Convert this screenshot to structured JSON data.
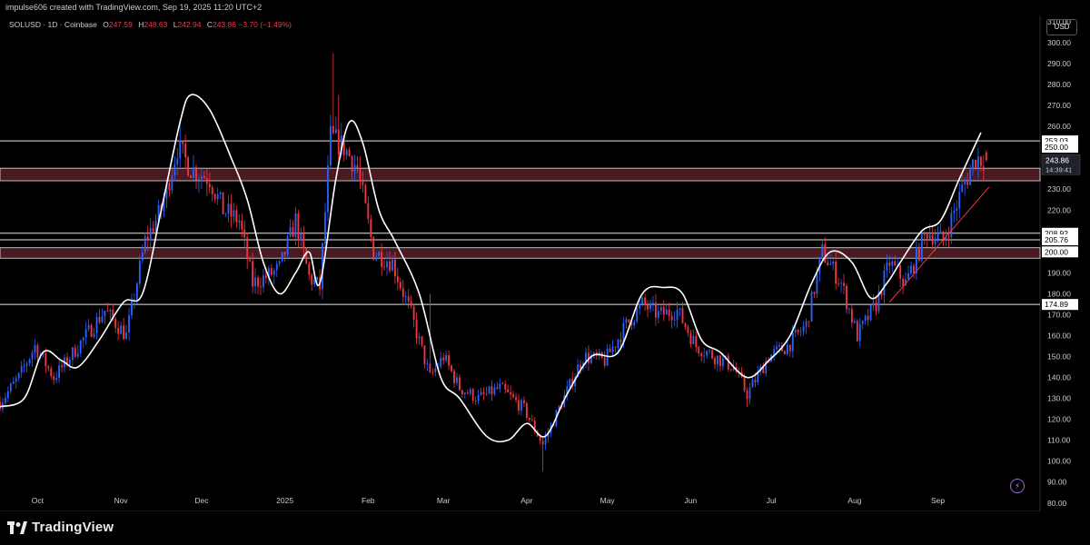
{
  "header": {
    "credit": "impulse606 created with TradingView.com, Sep 19, 2025 11:20 UTC+2",
    "symbol": "SOLUSD · 1D · Coinbase",
    "ohlc": [
      {
        "label": "O",
        "value": "247.59"
      },
      {
        "label": "H",
        "value": "248.63"
      },
      {
        "label": "L",
        "value": "242.94"
      },
      {
        "label": "C",
        "value": "243.86"
      }
    ],
    "change": "−3.70 (−1.49%)",
    "currency": "USD"
  },
  "footer": {
    "brand": "TradingView"
  },
  "colors": {
    "up": "#2962ff",
    "down": "#f23645",
    "ma": "#ffffff",
    "zone_fill": "#4a1a22",
    "zone_border": "#e6e6e6",
    "trendline": "#f23645",
    "background": "#000000"
  },
  "icons": {
    "lightning": "lightning-icon",
    "logo": "tradingview-logo-icon"
  },
  "chart_data": {
    "type": "candlestick",
    "title": "",
    "xlabel": "",
    "ylabel": "",
    "ylim": [
      76,
      313
    ],
    "yticks": [
      80,
      90,
      100,
      110,
      120,
      130,
      140,
      150,
      160,
      170,
      180,
      190,
      200,
      210,
      220,
      230,
      240,
      250,
      260,
      270,
      280,
      290,
      300,
      310
    ],
    "ytick_labels": [
      "80.00",
      "90.00",
      "100.00",
      "110.00",
      "120.00",
      "130.00",
      "140.00",
      "150.00",
      "160.00",
      "170.00",
      "180.00",
      "190.00",
      "200.00",
      "210.00",
      "220.00",
      "230.00",
      "240.00",
      "250.00",
      "260.00",
      "270.00",
      "280.00",
      "290.00",
      "300.00",
      "310.00"
    ],
    "x_start": "2024-09-17",
    "x_end": "2025-09-19",
    "x_range": [
      "2024-09-17",
      "2025-10-09"
    ],
    "month_ticks": [
      {
        "label": "Oct",
        "date": "2024-10-01"
      },
      {
        "label": "Nov",
        "date": "2024-11-01"
      },
      {
        "label": "Dec",
        "date": "2024-12-01"
      },
      {
        "label": "2025",
        "date": "2025-01-01"
      },
      {
        "label": "Feb",
        "date": "2025-02-01"
      },
      {
        "label": "Mar",
        "date": "2025-03-01"
      },
      {
        "label": "Apr",
        "date": "2025-04-01"
      },
      {
        "label": "May",
        "date": "2025-05-01"
      },
      {
        "label": "Jun",
        "date": "2025-06-01"
      },
      {
        "label": "Jul",
        "date": "2025-07-01"
      },
      {
        "label": "Aug",
        "date": "2025-08-01"
      },
      {
        "label": "Sep",
        "date": "2025-09-01"
      }
    ],
    "close_path": [
      [
        "2024-09-17",
        128
      ],
      [
        "2024-09-24",
        140
      ],
      [
        "2024-09-30",
        155
      ],
      [
        "2024-10-07",
        140
      ],
      [
        "2024-10-12",
        148
      ],
      [
        "2024-10-19",
        160
      ],
      [
        "2024-10-26",
        172
      ],
      [
        "2024-11-03",
        160
      ],
      [
        "2024-11-10",
        205
      ],
      [
        "2024-11-16",
        220
      ],
      [
        "2024-11-22",
        250
      ],
      [
        "2024-11-27",
        240
      ],
      [
        "2024-12-04",
        235
      ],
      [
        "2024-12-09",
        220
      ],
      [
        "2024-12-15",
        215
      ],
      [
        "2024-12-20",
        185
      ],
      [
        "2024-12-25",
        188
      ],
      [
        "2024-12-30",
        192
      ],
      [
        "2025-01-05",
        215
      ],
      [
        "2025-01-10",
        188
      ],
      [
        "2025-01-14",
        183
      ],
      [
        "2025-01-18",
        255
      ],
      [
        "2025-01-23",
        250
      ],
      [
        "2025-01-28",
        240
      ],
      [
        "2025-02-03",
        200
      ],
      [
        "2025-02-10",
        195
      ],
      [
        "2025-02-17",
        170
      ],
      [
        "2025-02-24",
        140
      ],
      [
        "2025-03-01",
        150
      ],
      [
        "2025-03-07",
        135
      ],
      [
        "2025-03-14",
        130
      ],
      [
        "2025-03-22",
        135
      ],
      [
        "2025-03-31",
        125
      ],
      [
        "2025-04-07",
        108
      ],
      [
        "2025-04-14",
        128
      ],
      [
        "2025-04-22",
        150
      ],
      [
        "2025-04-30",
        148
      ],
      [
        "2025-05-08",
        165
      ],
      [
        "2025-05-14",
        175
      ],
      [
        "2025-05-20",
        170
      ],
      [
        "2025-05-27",
        172
      ],
      [
        "2025-06-03",
        155
      ],
      [
        "2025-06-10",
        150
      ],
      [
        "2025-06-17",
        145
      ],
      [
        "2025-06-22",
        132
      ],
      [
        "2025-06-30",
        150
      ],
      [
        "2025-07-07",
        155
      ],
      [
        "2025-07-14",
        165
      ],
      [
        "2025-07-20",
        200
      ],
      [
        "2025-07-27",
        185
      ],
      [
        "2025-08-02",
        160
      ],
      [
        "2025-08-09",
        175
      ],
      [
        "2025-08-14",
        195
      ],
      [
        "2025-08-20",
        185
      ],
      [
        "2025-08-28",
        210
      ],
      [
        "2025-09-03",
        205
      ],
      [
        "2025-09-10",
        230
      ],
      [
        "2025-09-15",
        245
      ],
      [
        "2025-09-19",
        243.86
      ]
    ],
    "ma_path": [
      [
        "2024-09-17",
        126
      ],
      [
        "2024-09-26",
        130
      ],
      [
        "2024-10-03",
        152
      ],
      [
        "2024-10-10",
        148
      ],
      [
        "2024-10-16",
        145
      ],
      [
        "2024-10-24",
        158
      ],
      [
        "2024-11-02",
        176
      ],
      [
        "2024-11-09",
        180
      ],
      [
        "2024-11-16",
        220
      ],
      [
        "2024-11-23",
        262
      ],
      [
        "2024-11-27",
        275
      ],
      [
        "2024-12-04",
        268
      ],
      [
        "2024-12-12",
        245
      ],
      [
        "2024-12-18",
        225
      ],
      [
        "2024-12-24",
        195
      ],
      [
        "2024-12-30",
        180
      ],
      [
        "2025-01-05",
        190
      ],
      [
        "2025-01-10",
        200
      ],
      [
        "2025-01-14",
        185
      ],
      [
        "2025-01-20",
        235
      ],
      [
        "2025-01-25",
        262
      ],
      [
        "2025-01-30",
        252
      ],
      [
        "2025-02-05",
        220
      ],
      [
        "2025-02-11",
        205
      ],
      [
        "2025-02-20",
        180
      ],
      [
        "2025-02-28",
        140
      ],
      [
        "2025-03-07",
        130
      ],
      [
        "2025-03-17",
        112
      ],
      [
        "2025-03-25",
        110
      ],
      [
        "2025-04-01",
        118
      ],
      [
        "2025-04-08",
        112
      ],
      [
        "2025-04-16",
        132
      ],
      [
        "2025-04-25",
        150
      ],
      [
        "2025-05-05",
        152
      ],
      [
        "2025-05-14",
        180
      ],
      [
        "2025-05-22",
        183
      ],
      [
        "2025-05-29",
        180
      ],
      [
        "2025-06-05",
        158
      ],
      [
        "2025-06-12",
        152
      ],
      [
        "2025-06-22",
        140
      ],
      [
        "2025-06-30",
        148
      ],
      [
        "2025-07-08",
        160
      ],
      [
        "2025-07-16",
        185
      ],
      [
        "2025-07-23",
        200
      ],
      [
        "2025-07-31",
        195
      ],
      [
        "2025-08-07",
        178
      ],
      [
        "2025-08-13",
        185
      ],
      [
        "2025-08-18",
        195
      ],
      [
        "2025-08-26",
        210
      ],
      [
        "2025-09-02",
        215
      ],
      [
        "2025-09-09",
        235
      ],
      [
        "2025-09-17",
        257
      ]
    ],
    "volatility_spikes": [
      {
        "date": "2024-11-23",
        "high": 262
      },
      {
        "date": "2025-01-19",
        "high": 295
      },
      {
        "date": "2025-01-21",
        "high": 275
      },
      {
        "date": "2025-02-24",
        "high": 180
      },
      {
        "date": "2025-04-07",
        "low": 95
      },
      {
        "date": "2025-06-22",
        "low": 126
      }
    ],
    "horizontal_levels": [
      {
        "price": 253.03,
        "label": "253.03"
      },
      {
        "price": 208.92,
        "label": "208.92"
      },
      {
        "price": 205.76,
        "label": "205.76"
      },
      {
        "price": 174.89,
        "label": "174.89"
      }
    ],
    "zones": [
      {
        "top": 240,
        "bottom": 234
      },
      {
        "top": 202,
        "bottom": 197
      }
    ],
    "trendline": [
      [
        "2025-08-14",
        176
      ],
      [
        "2025-09-20",
        231
      ]
    ],
    "price_badges": [
      {
        "price": 243.86,
        "label": "243.86",
        "countdown": "14:39:41"
      },
      {
        "price": 250,
        "label": "250.00"
      },
      {
        "price": 200,
        "label": "200.00"
      }
    ]
  }
}
